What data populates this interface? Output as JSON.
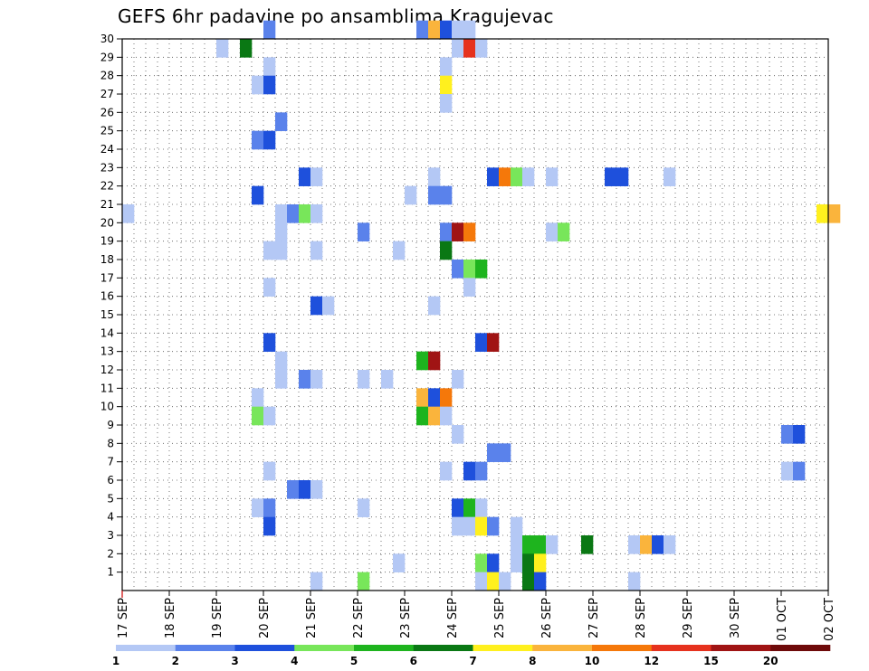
{
  "chart_data": {
    "type": "heatmap",
    "title": "GEFS 6hr padavine po ansamblima Kragujevac",
    "x_labels": [
      "17 SEP",
      "18 SEP",
      "19 SEP",
      "20 SEP",
      "21 SEP",
      "22 SEP",
      "23 SEP",
      "24 SEP",
      "25 SEP",
      "26 SEP",
      "27 SEP",
      "28 SEP",
      "29 SEP",
      "30 SEP",
      "01 OCT",
      "02 OCT"
    ],
    "y_labels": [
      "1",
      "2",
      "3",
      "4",
      "5",
      "6",
      "7",
      "8",
      "9",
      "10",
      "11",
      "12",
      "13",
      "14",
      "15",
      "16",
      "17",
      "18",
      "19",
      "20",
      "21",
      "22",
      "23",
      "24",
      "25",
      "26",
      "27",
      "28",
      "29",
      "30"
    ],
    "ylim": [
      0,
      30
    ],
    "grid": true,
    "legend": {
      "placement": "bottom",
      "labels": [
        "1",
        "2",
        "3",
        "4",
        "5",
        "6",
        "7",
        "8",
        "10",
        "12",
        "15",
        "20"
      ],
      "colors": [
        "#b4c8f5",
        "#5a82eb",
        "#1e50dc",
        "#78e65a",
        "#1eb41e",
        "#0a7814",
        "#fff01e",
        "#fab43c",
        "#f5780a",
        "#e6321e",
        "#a01414",
        "#6e0a0a"
      ]
    },
    "cells": [
      {
        "d": 3.0,
        "m": 30,
        "v": 2
      },
      {
        "d": 6.25,
        "m": 30,
        "v": 2
      },
      {
        "d": 6.5,
        "m": 30,
        "v": 8
      },
      {
        "d": 6.75,
        "m": 30,
        "v": 3
      },
      {
        "d": 7.0,
        "m": 30,
        "v": 1
      },
      {
        "d": 7.25,
        "m": 30,
        "v": 1
      },
      {
        "d": 2.0,
        "m": 29,
        "v": 1
      },
      {
        "d": 2.5,
        "m": 29,
        "v": 6
      },
      {
        "d": 7.0,
        "m": 29,
        "v": 1
      },
      {
        "d": 7.25,
        "m": 29,
        "v": 12
      },
      {
        "d": 7.5,
        "m": 29,
        "v": 1
      },
      {
        "d": 3.0,
        "m": 28,
        "v": 1
      },
      {
        "d": 6.75,
        "m": 28,
        "v": 1
      },
      {
        "d": 2.75,
        "m": 27,
        "v": 1
      },
      {
        "d": 3.0,
        "m": 27,
        "v": 3
      },
      {
        "d": 6.75,
        "m": 27,
        "v": 7
      },
      {
        "d": 6.75,
        "m": 26,
        "v": 1
      },
      {
        "d": 3.25,
        "m": 25,
        "v": 2
      },
      {
        "d": 2.75,
        "m": 24,
        "v": 2
      },
      {
        "d": 3.0,
        "m": 24,
        "v": 3
      },
      {
        "d": 3.75,
        "m": 22,
        "v": 3
      },
      {
        "d": 4.0,
        "m": 22,
        "v": 1
      },
      {
        "d": 6.5,
        "m": 22,
        "v": 1
      },
      {
        "d": 7.75,
        "m": 22,
        "v": 3
      },
      {
        "d": 8.0,
        "m": 22,
        "v": 10
      },
      {
        "d": 8.25,
        "m": 22,
        "v": 4
      },
      {
        "d": 8.5,
        "m": 22,
        "v": 1
      },
      {
        "d": 9.0,
        "m": 22,
        "v": 1
      },
      {
        "d": 10.25,
        "m": 22,
        "v": 3
      },
      {
        "d": 10.5,
        "m": 22,
        "v": 3
      },
      {
        "d": 11.5,
        "m": 22,
        "v": 1
      },
      {
        "d": 2.75,
        "m": 21,
        "v": 3
      },
      {
        "d": 6.0,
        "m": 21,
        "v": 1
      },
      {
        "d": 6.5,
        "m": 21,
        "v": 2
      },
      {
        "d": 6.75,
        "m": 21,
        "v": 2
      },
      {
        "d": 0.0,
        "m": 20,
        "v": 1
      },
      {
        "d": 3.25,
        "m": 20,
        "v": 1
      },
      {
        "d": 3.5,
        "m": 20,
        "v": 2
      },
      {
        "d": 3.75,
        "m": 20,
        "v": 4
      },
      {
        "d": 4.0,
        "m": 20,
        "v": 1
      },
      {
        "d": 14.75,
        "m": 20,
        "v": 7
      },
      {
        "d": 15.0,
        "m": 20,
        "v": 8
      },
      {
        "d": 3.25,
        "m": 19,
        "v": 1
      },
      {
        "d": 5.0,
        "m": 19,
        "v": 2
      },
      {
        "d": 6.75,
        "m": 19,
        "v": 2
      },
      {
        "d": 7.0,
        "m": 19,
        "v": 15
      },
      {
        "d": 7.25,
        "m": 19,
        "v": 10
      },
      {
        "d": 9.0,
        "m": 19,
        "v": 1
      },
      {
        "d": 9.25,
        "m": 19,
        "v": 4
      },
      {
        "d": 3.0,
        "m": 18,
        "v": 1
      },
      {
        "d": 3.25,
        "m": 18,
        "v": 1
      },
      {
        "d": 4.0,
        "m": 18,
        "v": 1
      },
      {
        "d": 5.75,
        "m": 18,
        "v": 1
      },
      {
        "d": 6.75,
        "m": 18,
        "v": 6
      },
      {
        "d": 7.0,
        "m": 17,
        "v": 2
      },
      {
        "d": 7.25,
        "m": 17,
        "v": 4
      },
      {
        "d": 7.5,
        "m": 17,
        "v": 5
      },
      {
        "d": 3.0,
        "m": 16,
        "v": 1
      },
      {
        "d": 7.25,
        "m": 16,
        "v": 1
      },
      {
        "d": 4.0,
        "m": 15,
        "v": 3
      },
      {
        "d": 4.25,
        "m": 15,
        "v": 1
      },
      {
        "d": 6.5,
        "m": 15,
        "v": 1
      },
      {
        "d": 3.0,
        "m": 13,
        "v": 3
      },
      {
        "d": 7.5,
        "m": 13,
        "v": 3
      },
      {
        "d": 7.75,
        "m": 13,
        "v": 15
      },
      {
        "d": 3.25,
        "m": 12,
        "v": 1
      },
      {
        "d": 6.25,
        "m": 12,
        "v": 5
      },
      {
        "d": 6.5,
        "m": 12,
        "v": 15
      },
      {
        "d": 3.25,
        "m": 11,
        "v": 1
      },
      {
        "d": 3.75,
        "m": 11,
        "v": 2
      },
      {
        "d": 4.0,
        "m": 11,
        "v": 1
      },
      {
        "d": 5.0,
        "m": 11,
        "v": 1
      },
      {
        "d": 5.5,
        "m": 11,
        "v": 1
      },
      {
        "d": 7.0,
        "m": 11,
        "v": 1
      },
      {
        "d": 2.75,
        "m": 10,
        "v": 1
      },
      {
        "d": 6.25,
        "m": 10,
        "v": 8
      },
      {
        "d": 6.5,
        "m": 10,
        "v": 3
      },
      {
        "d": 6.75,
        "m": 10,
        "v": 10
      },
      {
        "d": 2.75,
        "m": 9,
        "v": 4
      },
      {
        "d": 3.0,
        "m": 9,
        "v": 1
      },
      {
        "d": 6.25,
        "m": 9,
        "v": 5
      },
      {
        "d": 6.5,
        "m": 9,
        "v": 8
      },
      {
        "d": 6.75,
        "m": 9,
        "v": 1
      },
      {
        "d": 7.0,
        "m": 8,
        "v": 1
      },
      {
        "d": 14.0,
        "m": 8,
        "v": 2
      },
      {
        "d": 14.25,
        "m": 8,
        "v": 3
      },
      {
        "d": 7.75,
        "m": 7,
        "v": 2
      },
      {
        "d": 8.0,
        "m": 7,
        "v": 2
      },
      {
        "d": 3.0,
        "m": 6,
        "v": 1
      },
      {
        "d": 6.75,
        "m": 6,
        "v": 1
      },
      {
        "d": 7.25,
        "m": 6,
        "v": 3
      },
      {
        "d": 7.5,
        "m": 6,
        "v": 2
      },
      {
        "d": 14.0,
        "m": 6,
        "v": 1
      },
      {
        "d": 14.25,
        "m": 6,
        "v": 2
      },
      {
        "d": 3.5,
        "m": 5,
        "v": 2
      },
      {
        "d": 3.75,
        "m": 5,
        "v": 3
      },
      {
        "d": 4.0,
        "m": 5,
        "v": 1
      },
      {
        "d": 2.75,
        "m": 4,
        "v": 1
      },
      {
        "d": 3.0,
        "m": 4,
        "v": 2
      },
      {
        "d": 5.0,
        "m": 4,
        "v": 1
      },
      {
        "d": 7.0,
        "m": 4,
        "v": 3
      },
      {
        "d": 7.25,
        "m": 4,
        "v": 5
      },
      {
        "d": 7.5,
        "m": 4,
        "v": 1
      },
      {
        "d": 3.0,
        "m": 3,
        "v": 3
      },
      {
        "d": 7.0,
        "m": 3,
        "v": 1
      },
      {
        "d": 7.25,
        "m": 3,
        "v": 1
      },
      {
        "d": 7.5,
        "m": 3,
        "v": 7
      },
      {
        "d": 7.75,
        "m": 3,
        "v": 2
      },
      {
        "d": 8.25,
        "m": 3,
        "v": 1
      },
      {
        "d": 8.25,
        "m": 2,
        "v": 1
      },
      {
        "d": 8.5,
        "m": 2,
        "v": 5
      },
      {
        "d": 8.75,
        "m": 2,
        "v": 5
      },
      {
        "d": 9.0,
        "m": 2,
        "v": 1
      },
      {
        "d": 9.75,
        "m": 2,
        "v": 6
      },
      {
        "d": 10.75,
        "m": 2,
        "v": 1
      },
      {
        "d": 11.0,
        "m": 2,
        "v": 8
      },
      {
        "d": 11.25,
        "m": 2,
        "v": 3
      },
      {
        "d": 11.5,
        "m": 2,
        "v": 1
      },
      {
        "d": 5.75,
        "m": 1,
        "v": 1
      },
      {
        "d": 7.5,
        "m": 1,
        "v": 4
      },
      {
        "d": 7.75,
        "m": 1,
        "v": 3
      },
      {
        "d": 8.25,
        "m": 1,
        "v": 1
      },
      {
        "d": 8.5,
        "m": 1,
        "v": 6
      },
      {
        "d": 8.75,
        "m": 1,
        "v": 7
      },
      {
        "d": 4.0,
        "m": 0,
        "v": 1
      },
      {
        "d": 5.0,
        "m": 0,
        "v": 4
      },
      {
        "d": 7.5,
        "m": 0,
        "v": 1
      },
      {
        "d": 7.75,
        "m": 0,
        "v": 7
      },
      {
        "d": 8.0,
        "m": 0,
        "v": 1
      },
      {
        "d": 8.5,
        "m": 0,
        "v": 6
      },
      {
        "d": 8.75,
        "m": 0,
        "v": 3
      },
      {
        "d": 10.75,
        "m": 0,
        "v": 1
      }
    ]
  }
}
